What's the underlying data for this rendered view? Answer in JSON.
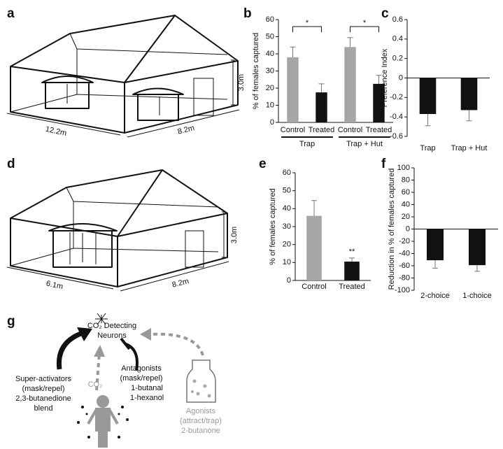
{
  "panel_labels": [
    "a",
    "b",
    "c",
    "d",
    "e",
    "f",
    "g"
  ],
  "diagram_a": {
    "height": "3.0m",
    "length": "12.2m",
    "width": "8.2m"
  },
  "diagram_d": {
    "height": "3.0m",
    "length": "6.1m",
    "width": "8.2m"
  },
  "diagram_g": {
    "neurons": [
      "CO₂ Detecting",
      "Neurons"
    ],
    "co2": "CO₂",
    "super_activators": [
      "Super-activators",
      "(mask/repel)",
      "2,3-butanedione",
      "blend"
    ],
    "antagonists": [
      "Antagonists",
      "(mask/repel)",
      "1-butanal",
      "1-hexanol"
    ],
    "agonists": [
      "Agonists",
      "(attract/trap)",
      "2-butanone"
    ]
  },
  "chart_data": [
    {
      "type": "bar",
      "ylabel": "% of females captured",
      "categories": [
        "Control",
        "Treated",
        "Control",
        "Treated"
      ],
      "groups": [
        "Trap",
        "Trap + Hut"
      ],
      "values": [
        38,
        17.5,
        44,
        22.5
      ],
      "errors": [
        6,
        5,
        5.5,
        5
      ],
      "colors": [
        "#a6a6a6",
        "#111111",
        "#a6a6a6",
        "#111111"
      ],
      "annotations": [
        "*",
        "*"
      ],
      "ylim": [
        0,
        60
      ],
      "yticks": [
        0,
        10,
        20,
        30,
        40,
        50,
        60
      ]
    },
    {
      "type": "bar",
      "ylabel": "Preference Index",
      "categories": [
        "Trap",
        "Trap + Hut"
      ],
      "values": [
        -0.37,
        -0.33
      ],
      "errors": [
        0.12,
        0.11
      ],
      "colors": [
        "#111111",
        "#111111"
      ],
      "ylim": [
        -0.6,
        0.6
      ],
      "yticks": [
        0.6,
        0.4,
        0.2,
        0,
        -0.2,
        -0.4,
        -0.6
      ]
    },
    {
      "type": "bar",
      "ylabel": "% of females captured",
      "categories": [
        "Control",
        "Treated"
      ],
      "values": [
        36,
        10.5
      ],
      "errors": [
        8.5,
        2
      ],
      "colors": [
        "#a6a6a6",
        "#111111"
      ],
      "annotations": [
        "**"
      ],
      "ylim": [
        0,
        60
      ],
      "yticks": [
        0,
        10,
        20,
        30,
        40,
        50,
        60
      ]
    },
    {
      "type": "bar",
      "ylabel": "Reduction in % of females captured",
      "categories": [
        "2-choice",
        "1-choice"
      ],
      "values": [
        -51,
        -59
      ],
      "errors": [
        13,
        10
      ],
      "colors": [
        "#111111",
        "#111111"
      ],
      "ylim": [
        -100,
        100
      ],
      "yticks": [
        100,
        80,
        60,
        40,
        20,
        0,
        -20,
        -40,
        -60,
        -80,
        -100
      ]
    }
  ]
}
